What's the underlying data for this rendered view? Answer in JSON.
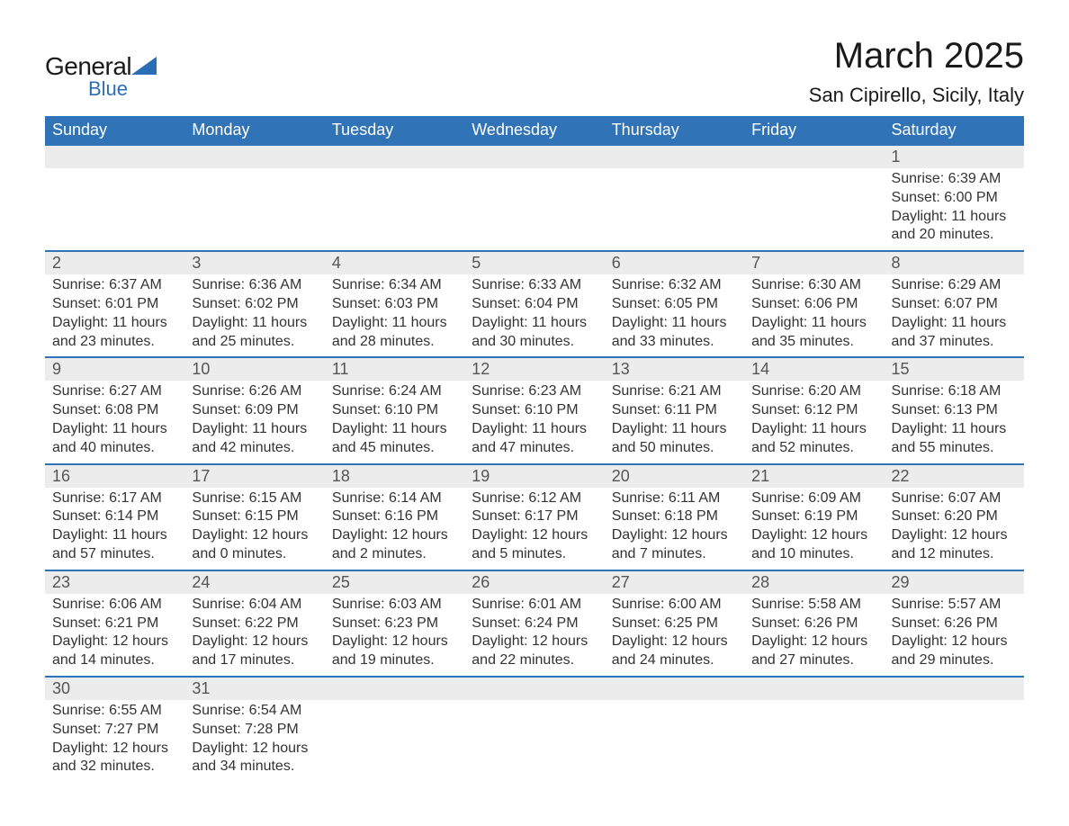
{
  "brand": {
    "name1": "General",
    "name2": "Blue",
    "color": "#2a6fb5"
  },
  "title": "March 2025",
  "subtitle": "San Cipirello, Sicily, Italy",
  "colors": {
    "header_bg": "#3073b7",
    "header_text": "#ffffff",
    "daynum_bg": "#ececec",
    "body_text": "#333333",
    "rule": "#3073b7"
  },
  "fonts": {
    "title_size": 40,
    "subtitle_size": 22,
    "header_size": 18,
    "cell_size": 16
  },
  "day_headers": [
    "Sunday",
    "Monday",
    "Tuesday",
    "Wednesday",
    "Thursday",
    "Friday",
    "Saturday"
  ],
  "weeks": [
    [
      null,
      null,
      null,
      null,
      null,
      null,
      {
        "n": "1",
        "sr": "6:39 AM",
        "ss": "6:00 PM",
        "dl": "11 hours and 20 minutes."
      }
    ],
    [
      {
        "n": "2",
        "sr": "6:37 AM",
        "ss": "6:01 PM",
        "dl": "11 hours and 23 minutes."
      },
      {
        "n": "3",
        "sr": "6:36 AM",
        "ss": "6:02 PM",
        "dl": "11 hours and 25 minutes."
      },
      {
        "n": "4",
        "sr": "6:34 AM",
        "ss": "6:03 PM",
        "dl": "11 hours and 28 minutes."
      },
      {
        "n": "5",
        "sr": "6:33 AM",
        "ss": "6:04 PM",
        "dl": "11 hours and 30 minutes."
      },
      {
        "n": "6",
        "sr": "6:32 AM",
        "ss": "6:05 PM",
        "dl": "11 hours and 33 minutes."
      },
      {
        "n": "7",
        "sr": "6:30 AM",
        "ss": "6:06 PM",
        "dl": "11 hours and 35 minutes."
      },
      {
        "n": "8",
        "sr": "6:29 AM",
        "ss": "6:07 PM",
        "dl": "11 hours and 37 minutes."
      }
    ],
    [
      {
        "n": "9",
        "sr": "6:27 AM",
        "ss": "6:08 PM",
        "dl": "11 hours and 40 minutes."
      },
      {
        "n": "10",
        "sr": "6:26 AM",
        "ss": "6:09 PM",
        "dl": "11 hours and 42 minutes."
      },
      {
        "n": "11",
        "sr": "6:24 AM",
        "ss": "6:10 PM",
        "dl": "11 hours and 45 minutes."
      },
      {
        "n": "12",
        "sr": "6:23 AM",
        "ss": "6:10 PM",
        "dl": "11 hours and 47 minutes."
      },
      {
        "n": "13",
        "sr": "6:21 AM",
        "ss": "6:11 PM",
        "dl": "11 hours and 50 minutes."
      },
      {
        "n": "14",
        "sr": "6:20 AM",
        "ss": "6:12 PM",
        "dl": "11 hours and 52 minutes."
      },
      {
        "n": "15",
        "sr": "6:18 AM",
        "ss": "6:13 PM",
        "dl": "11 hours and 55 minutes."
      }
    ],
    [
      {
        "n": "16",
        "sr": "6:17 AM",
        "ss": "6:14 PM",
        "dl": "11 hours and 57 minutes."
      },
      {
        "n": "17",
        "sr": "6:15 AM",
        "ss": "6:15 PM",
        "dl": "12 hours and 0 minutes."
      },
      {
        "n": "18",
        "sr": "6:14 AM",
        "ss": "6:16 PM",
        "dl": "12 hours and 2 minutes."
      },
      {
        "n": "19",
        "sr": "6:12 AM",
        "ss": "6:17 PM",
        "dl": "12 hours and 5 minutes."
      },
      {
        "n": "20",
        "sr": "6:11 AM",
        "ss": "6:18 PM",
        "dl": "12 hours and 7 minutes."
      },
      {
        "n": "21",
        "sr": "6:09 AM",
        "ss": "6:19 PM",
        "dl": "12 hours and 10 minutes."
      },
      {
        "n": "22",
        "sr": "6:07 AM",
        "ss": "6:20 PM",
        "dl": "12 hours and 12 minutes."
      }
    ],
    [
      {
        "n": "23",
        "sr": "6:06 AM",
        "ss": "6:21 PM",
        "dl": "12 hours and 14 minutes."
      },
      {
        "n": "24",
        "sr": "6:04 AM",
        "ss": "6:22 PM",
        "dl": "12 hours and 17 minutes."
      },
      {
        "n": "25",
        "sr": "6:03 AM",
        "ss": "6:23 PM",
        "dl": "12 hours and 19 minutes."
      },
      {
        "n": "26",
        "sr": "6:01 AM",
        "ss": "6:24 PM",
        "dl": "12 hours and 22 minutes."
      },
      {
        "n": "27",
        "sr": "6:00 AM",
        "ss": "6:25 PM",
        "dl": "12 hours and 24 minutes."
      },
      {
        "n": "28",
        "sr": "5:58 AM",
        "ss": "6:26 PM",
        "dl": "12 hours and 27 minutes."
      },
      {
        "n": "29",
        "sr": "5:57 AM",
        "ss": "6:26 PM",
        "dl": "12 hours and 29 minutes."
      }
    ],
    [
      {
        "n": "30",
        "sr": "6:55 AM",
        "ss": "7:27 PM",
        "dl": "12 hours and 32 minutes."
      },
      {
        "n": "31",
        "sr": "6:54 AM",
        "ss": "7:28 PM",
        "dl": "12 hours and 34 minutes."
      },
      null,
      null,
      null,
      null,
      null
    ]
  ],
  "labels": {
    "sunrise": "Sunrise: ",
    "sunset": "Sunset: ",
    "daylight": "Daylight: "
  }
}
